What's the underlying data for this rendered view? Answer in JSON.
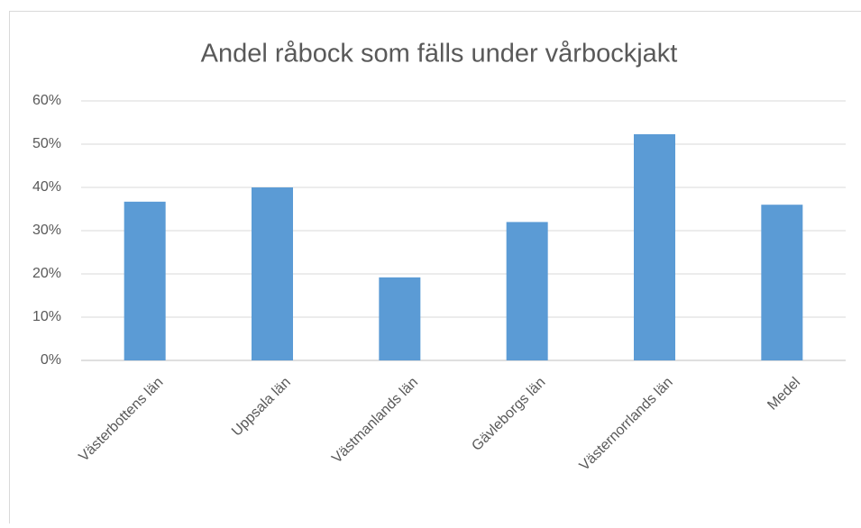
{
  "chart_data": {
    "type": "bar",
    "title": "Andel råbock som fälls under vårbockjakt",
    "categories": [
      "Västerbottens län",
      "Uppsala län",
      "Västmanlands län",
      "Gävleborgs län",
      "Västernorrlands län",
      "Medel"
    ],
    "values": [
      36.7,
      40,
      19.2,
      32,
      52.3,
      36
    ],
    "color": "#5b9bd5",
    "ylim": [
      0,
      60
    ],
    "yticks": [
      {
        "value": 0,
        "label": "0%"
      },
      {
        "value": 10,
        "label": "10%"
      },
      {
        "value": 20,
        "label": "20%"
      },
      {
        "value": 30,
        "label": "30%"
      },
      {
        "value": 40,
        "label": "40%"
      },
      {
        "value": 50,
        "label": "50%"
      },
      {
        "value": 60,
        "label": "60%"
      }
    ],
    "grid": true
  }
}
